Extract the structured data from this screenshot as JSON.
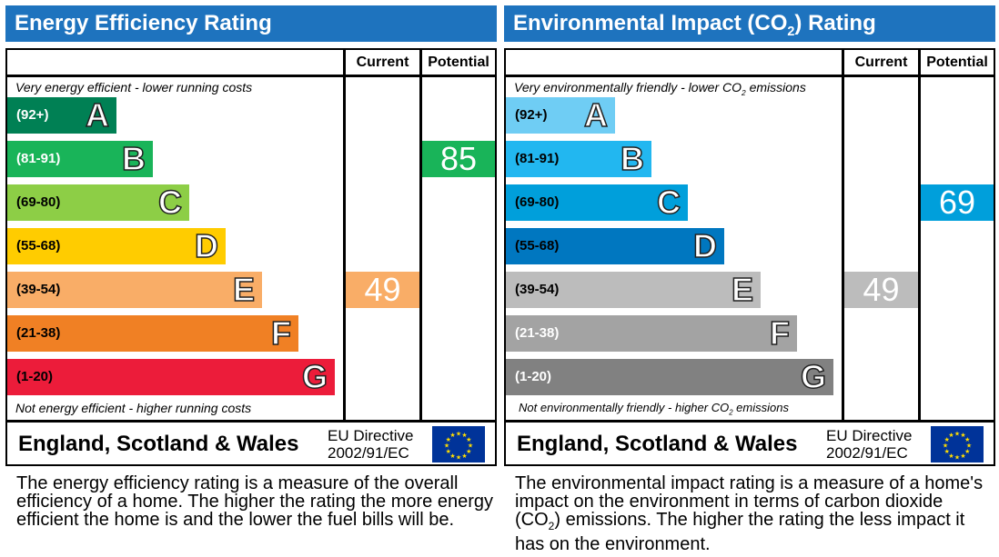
{
  "chart_data": [
    {
      "type": "bar",
      "title": "Energy Efficiency Rating",
      "columns": [
        "Current",
        "Potential"
      ],
      "top_note": "Very energy efficient - lower running costs",
      "bottom_note": "Not energy efficient - higher running costs",
      "bands": [
        {
          "letter": "A",
          "range": "(92+)",
          "color": "#008054",
          "text_color": "#ffffff"
        },
        {
          "letter": "B",
          "range": "(81-91)",
          "color": "#19b459",
          "text_color": "#ffffff"
        },
        {
          "letter": "C",
          "range": "(69-80)",
          "color": "#8dce46",
          "text_color": "#000000"
        },
        {
          "letter": "D",
          "range": "(55-68)",
          "color": "#ffcc00",
          "text_color": "#000000"
        },
        {
          "letter": "E",
          "range": "(39-54)",
          "color": "#f9ad67",
          "text_color": "#000000"
        },
        {
          "letter": "F",
          "range": "(21-38)",
          "color": "#f08024",
          "text_color": "#000000"
        },
        {
          "letter": "G",
          "range": "(1-20)",
          "color": "#ec1c3a",
          "text_color": "#000000"
        }
      ],
      "current": {
        "value": "49",
        "band": "E"
      },
      "potential": {
        "value": "85",
        "band": "B"
      },
      "footer": {
        "region": "England, Scotland & Wales",
        "directive_line1": "EU Directive",
        "directive_line2": "2002/91/EC",
        "flag": "eu-flag"
      },
      "description": "The energy efficiency rating is a measure of the overall efficiency of a home. The higher the rating the more energy efficient the home is and the lower the fuel bills will be."
    },
    {
      "type": "bar",
      "title": "Environmental Impact (CO2) Rating",
      "columns": [
        "Current",
        "Potential"
      ],
      "top_note": "Very environmentally friendly - lower CO2 emissions",
      "bottom_note": "Not environmentally friendly - higher CO2 emissions",
      "bands": [
        {
          "letter": "A",
          "range": "(92+)",
          "color": "#6fcdf4",
          "text_color": "#000000"
        },
        {
          "letter": "B",
          "range": "(81-91)",
          "color": "#22b7f0",
          "text_color": "#000000"
        },
        {
          "letter": "C",
          "range": "(69-80)",
          "color": "#009fdb",
          "text_color": "#000000"
        },
        {
          "letter": "D",
          "range": "(55-68)",
          "color": "#0077c0",
          "text_color": "#000000"
        },
        {
          "letter": "E",
          "range": "(39-54)",
          "color": "#bcbcbc",
          "text_color": "#000000"
        },
        {
          "letter": "F",
          "range": "(21-38)",
          "color": "#a3a3a3",
          "text_color": "#ffffff"
        },
        {
          "letter": "G",
          "range": "(1-20)",
          "color": "#818181",
          "text_color": "#ffffff"
        }
      ],
      "current": {
        "value": "49",
        "band": "E"
      },
      "potential": {
        "value": "69",
        "band": "C"
      },
      "footer": {
        "region": "England, Scotland & Wales",
        "directive_line1": "EU Directive",
        "directive_line2": "2002/91/EC",
        "flag": "eu-flag"
      },
      "description": "The environmental impact rating is a measure of a home's impact on the environment in terms of carbon dioxide (CO2) emissions. The higher the rating the less impact it has on the environment."
    }
  ]
}
